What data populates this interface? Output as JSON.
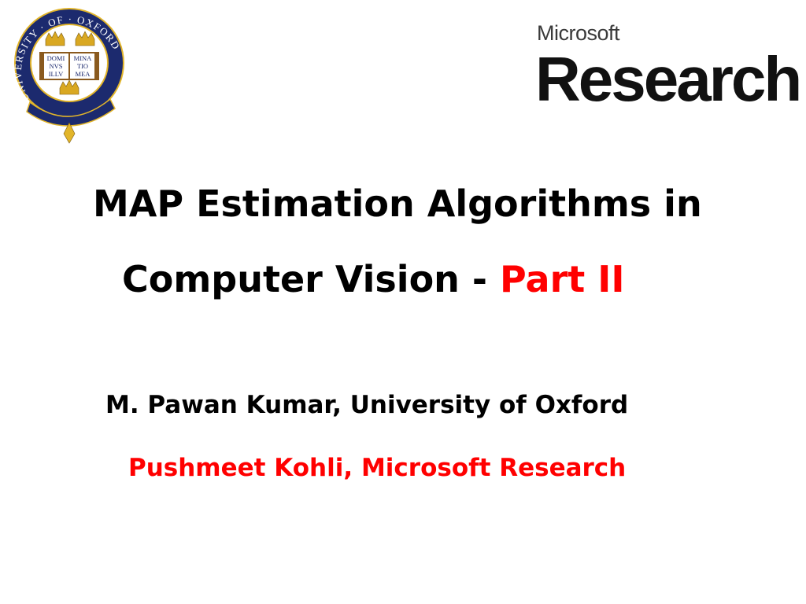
{
  "logos": {
    "oxford": {
      "ring_text": "UNIVERSITY · OF · OXFORD",
      "book_text": [
        "DOMI",
        "NVS",
        "ILLV",
        "MINA",
        "TIO",
        "MEA"
      ],
      "colors": {
        "blue": "#1c2a6e",
        "gold": "#e2b52a"
      }
    },
    "microsoft_research": {
      "line1": "Microsoft",
      "line2": "Research"
    }
  },
  "slide": {
    "title_line1": "MAP Estimation Algorithms in",
    "title_line2_main": "Computer Vision - ",
    "title_line2_accent": "Part II",
    "author1": "M. Pawan Kumar, University of Oxford",
    "author2": "Pushmeet Kohli, Microsoft Research",
    "accent_color": "#ff0000"
  }
}
